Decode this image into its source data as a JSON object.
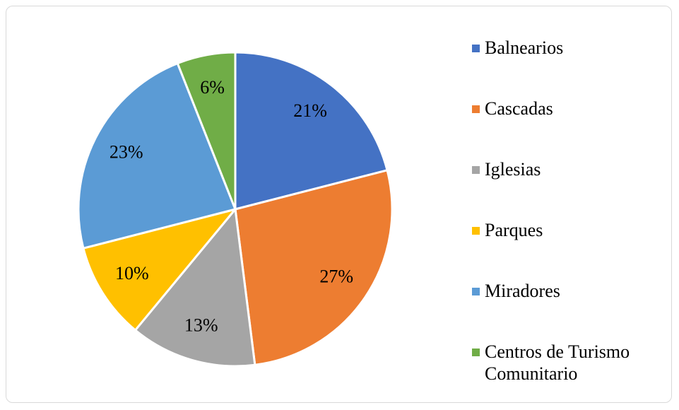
{
  "chart_data": {
    "type": "pie",
    "categories": [
      "Balnearios",
      "Cascadas",
      "Iglesias",
      "Parques",
      "Miradores",
      "Centros de Turismo Comunitario"
    ],
    "values": [
      21,
      27,
      13,
      10,
      23,
      6
    ],
    "value_labels": [
      "21%",
      "27%",
      "13%",
      "10%",
      "23%",
      "6%"
    ],
    "colors": [
      "#4472c4",
      "#ed7d31",
      "#a5a5a5",
      "#ffc000",
      "#5b9bd5",
      "#70ad47"
    ],
    "legend": "right"
  }
}
